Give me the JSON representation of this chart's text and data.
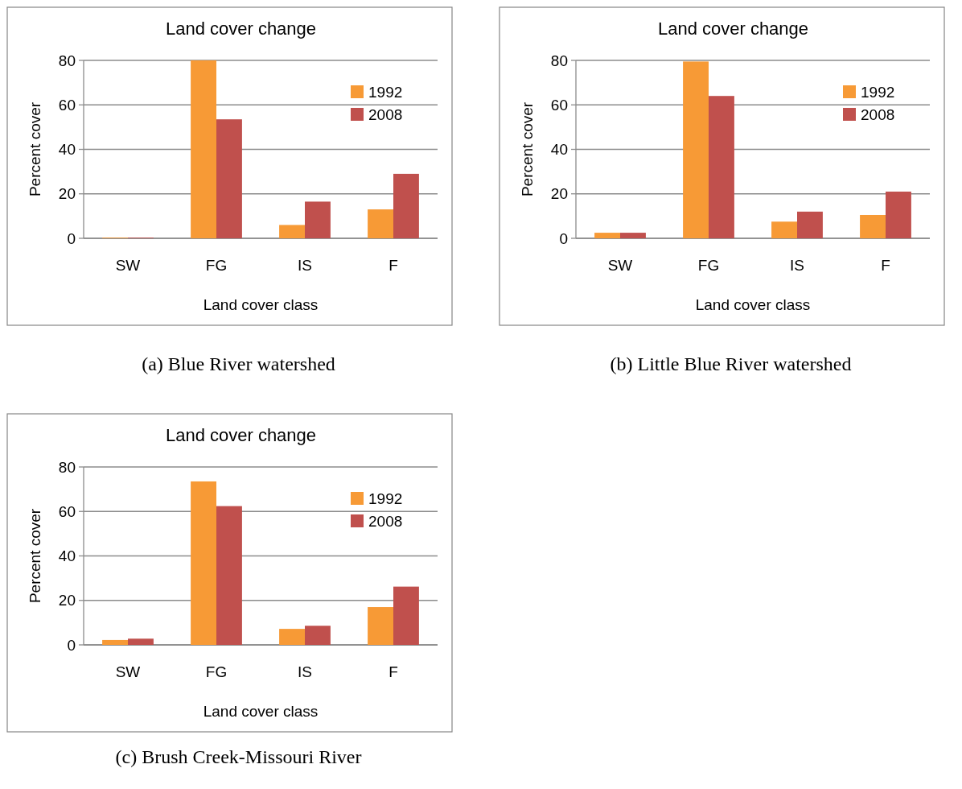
{
  "chart_data": [
    {
      "type": "bar",
      "title": "Land cover change",
      "xlabel": "Land cover class",
      "ylabel": "Percent cover",
      "categories": [
        "SW",
        "FG",
        "IS",
        "F"
      ],
      "series": [
        {
          "name": "1992",
          "color": "#f79a36",
          "values": [
            0.3,
            80,
            6,
            13
          ]
        },
        {
          "name": "2008",
          "color": "#c0504d",
          "values": [
            0.3,
            53.5,
            16.5,
            29
          ]
        }
      ],
      "ylim": [
        0,
        80
      ],
      "yticks": [
        0,
        20,
        40,
        60,
        80
      ],
      "grid": "y",
      "legend": "top right",
      "annotations": [
        "(a)  Blue River watershed"
      ]
    },
    {
      "type": "bar",
      "title": "Land cover change",
      "xlabel": "Land cover class",
      "ylabel": "Percent cover",
      "categories": [
        "SW",
        "FG",
        "IS",
        "F"
      ],
      "series": [
        {
          "name": "1992",
          "color": "#f79a36",
          "values": [
            2.5,
            79.5,
            7.5,
            10.5
          ]
        },
        {
          "name": "2008",
          "color": "#c0504d",
          "values": [
            2.5,
            64,
            12,
            21
          ]
        }
      ],
      "ylim": [
        0,
        80
      ],
      "yticks": [
        0,
        20,
        40,
        60,
        80
      ],
      "grid": "y",
      "legend": "top right",
      "annotations": [
        "(b) Little Blue River watershed"
      ]
    },
    {
      "type": "bar",
      "title": "Land cover change",
      "xlabel": "Land cover class",
      "ylabel": "Percent cover",
      "categories": [
        "SW",
        "FG",
        "IS",
        "F"
      ],
      "series": [
        {
          "name": "1992",
          "color": "#f79a36",
          "values": [
            2.2,
            73.5,
            7.2,
            17
          ]
        },
        {
          "name": "2008",
          "color": "#c0504d",
          "values": [
            2.8,
            62.4,
            8.6,
            26.2
          ]
        }
      ],
      "ylim": [
        0,
        80
      ],
      "yticks": [
        0,
        20,
        40,
        60,
        80
      ],
      "grid": "y",
      "legend": "top right",
      "annotations": [
        "(c)  Brush Creek-Missouri River"
      ]
    }
  ]
}
